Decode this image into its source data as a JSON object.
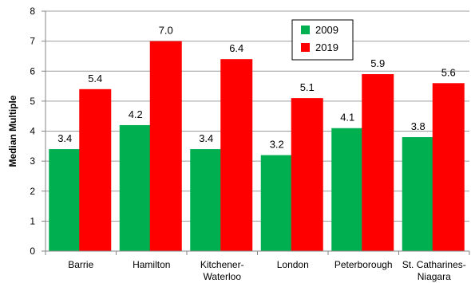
{
  "chart_data": {
    "type": "bar",
    "categories": [
      [
        "Barrie"
      ],
      [
        "Hamilton"
      ],
      [
        "Kitchener-",
        "Waterloo"
      ],
      [
        "London"
      ],
      [
        "Peterborough"
      ],
      [
        "St. Catharines-",
        "Niagara"
      ]
    ],
    "series": [
      {
        "name": "2009",
        "values": [
          3.4,
          4.2,
          3.4,
          3.2,
          4.1,
          3.8
        ],
        "color": "#00b050"
      },
      {
        "name": "2019",
        "values": [
          5.4,
          7.0,
          6.4,
          5.1,
          5.9,
          5.6
        ],
        "color": "#ff0000"
      }
    ],
    "title": "",
    "xlabel": "",
    "ylabel": "Median Multiple",
    "ylim": [
      0,
      8
    ],
    "yticks": [
      0,
      1,
      2,
      3,
      4,
      5,
      6,
      7,
      8
    ],
    "grid": true,
    "legend_position": "top-right"
  }
}
